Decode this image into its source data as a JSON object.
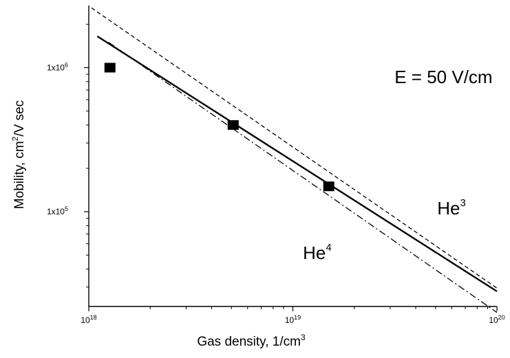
{
  "chart_data": {
    "type": "line",
    "xlabel": "Gas density, 1/cm",
    "xlabel_sup": "3",
    "ylabel_main": "Mobility, cm",
    "ylabel_sup": "2",
    "ylabel_rest": "/V sec",
    "x_scale": "log",
    "y_scale": "log",
    "xlim": [
      1e+18,
      1e+20
    ],
    "ylim": [
      22000,
      2700000
    ],
    "x_ticks": [
      {
        "value": 1e+18,
        "base": "10",
        "exp": "18"
      },
      {
        "value": 1e+19,
        "base": "10",
        "exp": "19"
      },
      {
        "value": 1e+20,
        "base": "10",
        "exp": "20"
      }
    ],
    "y_ticks": [
      {
        "value": 100000,
        "base": "1x10",
        "exp": "5"
      },
      {
        "value": 1000000,
        "base": "1x10",
        "exp": "6"
      }
    ],
    "grid": false,
    "series": [
      {
        "style": "solid",
        "x": [
          1.1e+18,
          1e+20
        ],
        "y": [
          1650000,
          28000
        ]
      },
      {
        "style": "dashed",
        "x": [
          1.03e+18,
          1e+20
        ],
        "y": [
          2600000,
          29500
        ]
      },
      {
        "style": "dashdot",
        "x": [
          1.25e+18,
          1e+20
        ],
        "y": [
          1500000,
          20000
        ]
      },
      {
        "style": "markers",
        "marker": "square",
        "x": [
          1.27e+18,
          5.1e+18,
          1.5e+19
        ],
        "y": [
          1000000,
          400000,
          150000
        ]
      }
    ],
    "annotations": [
      {
        "text": "E = 50 V/cm",
        "sup": "",
        "x": 3.15e+19,
        "y": 780000
      },
      {
        "text": "He",
        "sup": "3",
        "x": 5.1e+19,
        "y": 96000
      },
      {
        "text": "He",
        "sup": "4",
        "x": 1.12e+19,
        "y": 47000
      }
    ]
  }
}
